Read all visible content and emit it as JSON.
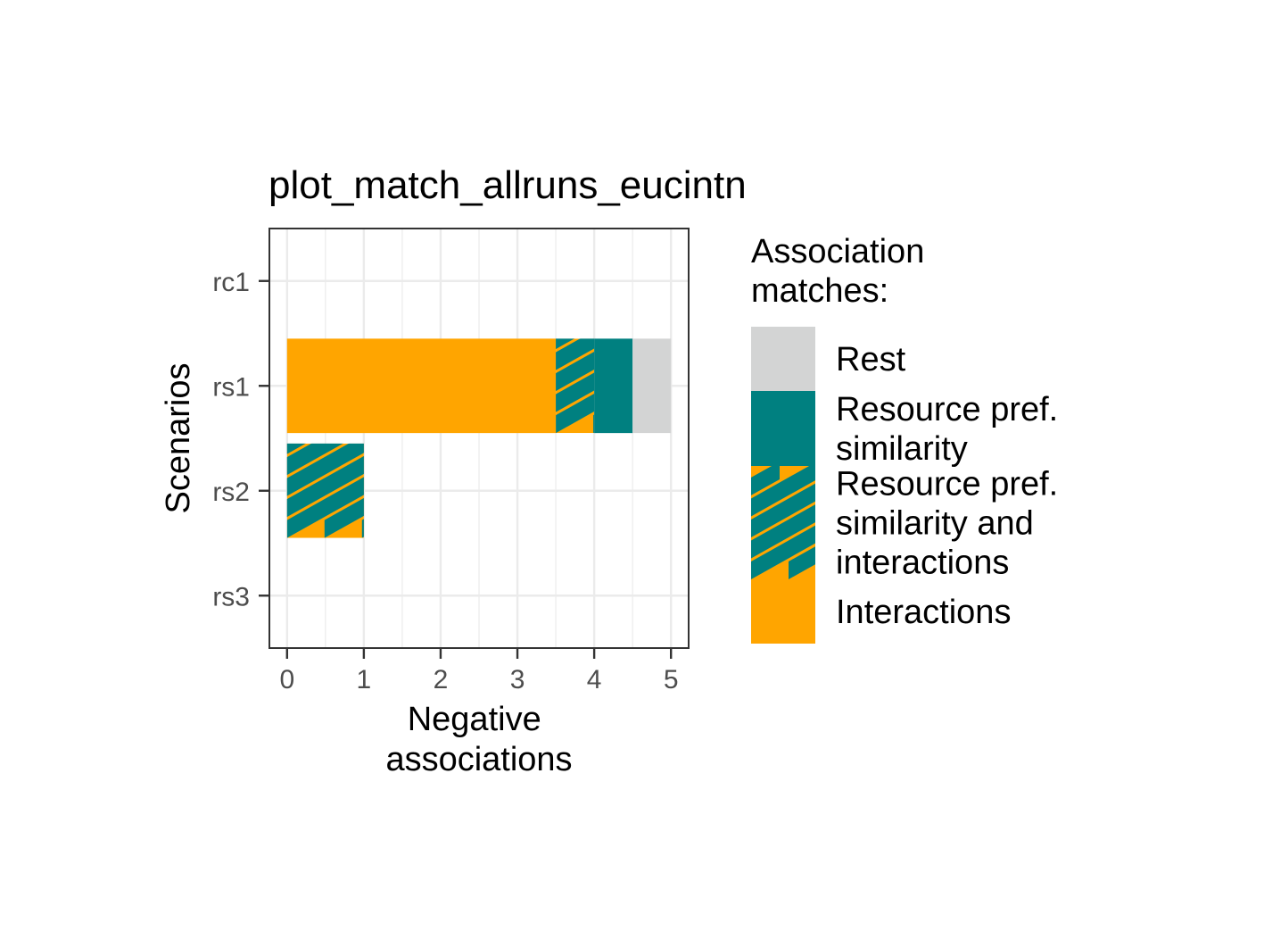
{
  "colors": {
    "rest": "#d3d4d4",
    "resource": "#008080",
    "interactions": "#ffa500",
    "grid": "#ebebeb",
    "panel_border": "#333333",
    "tick": "#333333"
  },
  "chart_data": {
    "type": "bar",
    "orientation": "horizontal",
    "stacked": true,
    "title": "plot_match_allruns_eucintn",
    "xlabel": [
      "Negative",
      "associations"
    ],
    "ylabel": "Scenarios",
    "categories": [
      "rc1",
      "rs1",
      "rs2",
      "rs3"
    ],
    "xlim": [
      -0.23,
      5.23
    ],
    "xticks": [
      0,
      1,
      2,
      3,
      4,
      5
    ],
    "grid": true,
    "legend_position": "right",
    "series": [
      {
        "name": "Interactions",
        "color": "#ffa500",
        "pattern": "none",
        "values": [
          0,
          3.5,
          0,
          0
        ]
      },
      {
        "name": "Resource pref. similarity and interactions",
        "color": "#ffa500",
        "pattern_color": "#008080",
        "pattern": "stripe",
        "values": [
          0,
          0.5,
          1,
          0
        ]
      },
      {
        "name": "Resource pref. similarity",
        "color": "#008080",
        "pattern": "none",
        "values": [
          0,
          0.5,
          0,
          0
        ]
      },
      {
        "name": "Rest",
        "color": "#d3d4d4",
        "pattern": "none",
        "values": [
          0,
          0.5,
          0,
          0
        ]
      }
    ]
  },
  "legend": {
    "title": [
      "Association",
      "matches:"
    ],
    "items": [
      {
        "key": "rest",
        "lines": [
          "Rest"
        ]
      },
      {
        "key": "resource",
        "lines": [
          "Resource pref.",
          "similarity"
        ]
      },
      {
        "key": "both",
        "lines": [
          "Resource pref.",
          "similarity and",
          "interactions"
        ]
      },
      {
        "key": "interactions",
        "lines": [
          "Interactions"
        ]
      }
    ]
  }
}
